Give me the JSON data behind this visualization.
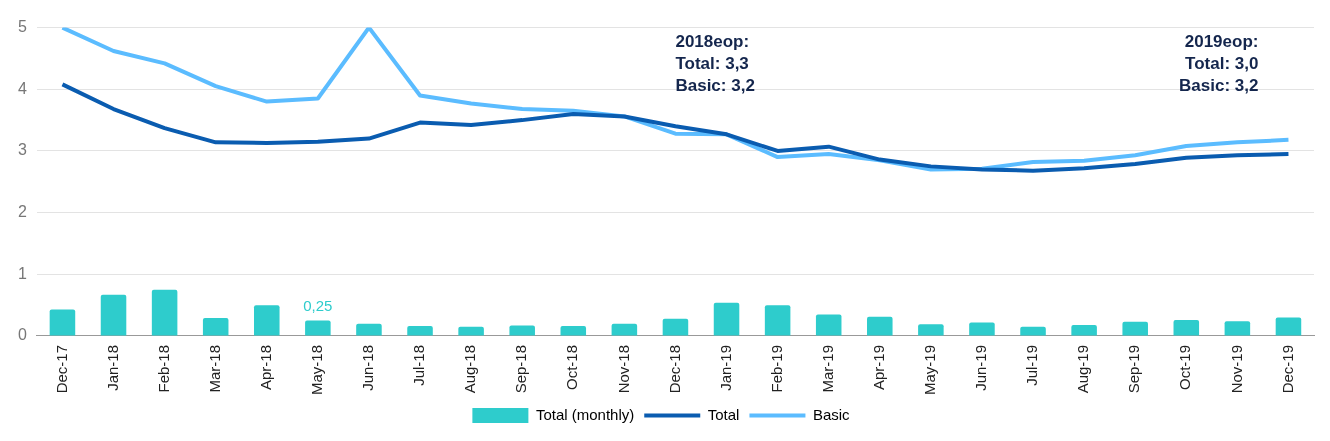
{
  "chart_data": {
    "type": "bar",
    "categories": [
      "Dec-17",
      "Jan-18",
      "Feb-18",
      "Mar-18",
      "Apr-18",
      "May-18",
      "Jun-18",
      "Jul-18",
      "Aug-18",
      "Sep-18",
      "Oct-18",
      "Nov-18",
      "Dec-18",
      "Jan-19",
      "Feb-19",
      "Mar-19",
      "Apr-19",
      "May-19",
      "Jun-19",
      "Jul-19",
      "Aug-19",
      "Sep-19",
      "Oct-19",
      "Nov-19",
      "Dec-19"
    ],
    "series": [
      {
        "name": "Total (monthly)",
        "color": "#2ecccc",
        "values": [
          0.43,
          0.67,
          0.75,
          0.29,
          0.5,
          0.25,
          0.2,
          0.16,
          0.15,
          0.17,
          0.16,
          0.2,
          0.28,
          0.54,
          0.5,
          0.35,
          0.31,
          0.19,
          0.22,
          0.15,
          0.18,
          0.23,
          0.26,
          0.24,
          0.3
        ],
        "value_labels": [
          null,
          null,
          null,
          null,
          null,
          "0,25",
          null,
          null,
          null,
          null,
          null,
          null,
          null,
          null,
          null,
          null,
          null,
          null,
          null,
          null,
          null,
          null,
          null,
          null,
          null
        ]
      },
      {
        "name": "Total",
        "type": "line",
        "color": "#0a5cb0",
        "values": [
          4.08,
          3.68,
          3.37,
          3.14,
          3.13,
          3.15,
          3.2,
          3.46,
          3.42,
          3.5,
          3.6,
          3.56,
          3.4,
          3.27,
          3.0,
          3.07,
          2.86,
          2.75,
          2.7,
          2.68,
          2.72,
          2.79,
          2.89,
          2.93,
          2.95
        ]
      },
      {
        "name": "Basic",
        "type": "line",
        "color": "#5bbcff",
        "values": [
          5.0,
          4.62,
          4.42,
          4.05,
          3.8,
          3.85,
          5.0,
          3.9,
          3.77,
          3.68,
          3.65,
          3.56,
          3.28,
          3.27,
          2.9,
          2.95,
          2.85,
          2.7,
          2.71,
          2.82,
          2.84,
          2.93,
          3.08,
          3.14,
          3.18
        ]
      }
    ],
    "annotations": [
      "2018eop:\nTotal: 3,3\nBasic: 3,2",
      "2019eop:\nTotal: 3,0\nBasic: 3,2"
    ],
    "ylim": [
      0,
      5
    ],
    "yticks": [
      0,
      1,
      2,
      3,
      4,
      5
    ],
    "grid": "y",
    "legend": "bottom",
    "marker": "none",
    "line_style": "solid"
  }
}
